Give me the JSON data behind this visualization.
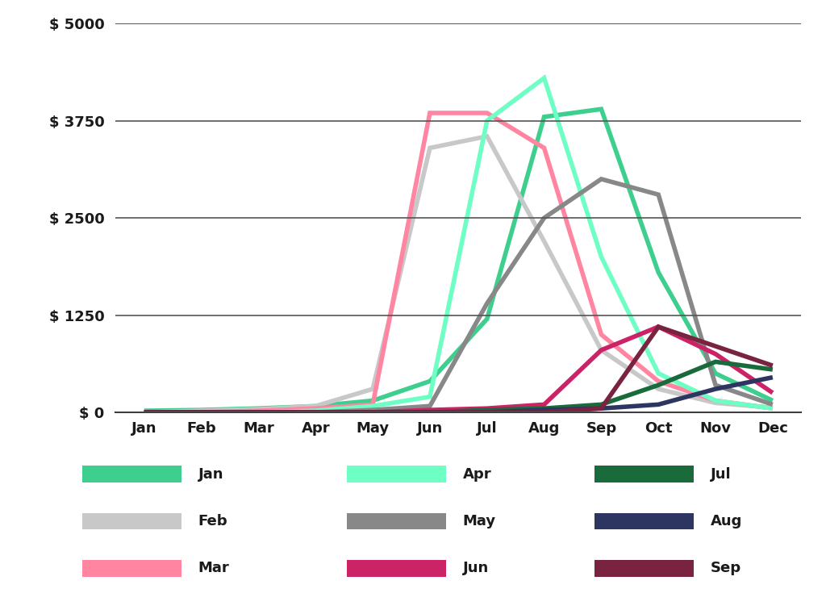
{
  "months": [
    "Jan",
    "Feb",
    "Mar",
    "Apr",
    "May",
    "Jun",
    "Jul",
    "Aug",
    "Sep",
    "Oct",
    "Nov",
    "Dec"
  ],
  "month_indices": [
    1,
    2,
    3,
    4,
    5,
    6,
    7,
    8,
    9,
    10,
    11,
    12
  ],
  "cohorts": {
    "Jan": {
      "color": "#3ecf8e",
      "values": [
        20,
        30,
        50,
        80,
        150,
        400,
        1200,
        3800,
        3900,
        1800,
        500,
        150
      ]
    },
    "Feb": {
      "color": "#c8c8c8",
      "values": [
        0,
        20,
        40,
        80,
        300,
        3400,
        3550,
        2200,
        800,
        300,
        120,
        60
      ]
    },
    "Mar": {
      "color": "#ff85a1",
      "values": [
        0,
        0,
        20,
        50,
        100,
        3850,
        3850,
        3400,
        1000,
        400,
        150,
        50
      ]
    },
    "Apr": {
      "color": "#6effc4",
      "values": [
        0,
        0,
        0,
        20,
        80,
        200,
        3750,
        4300,
        2000,
        500,
        150,
        50
      ]
    },
    "May": {
      "color": "#888888",
      "values": [
        0,
        0,
        0,
        0,
        30,
        80,
        1400,
        2500,
        3000,
        2800,
        350,
        100
      ]
    },
    "Jun": {
      "color": "#cc2266",
      "values": [
        0,
        0,
        0,
        0,
        0,
        30,
        50,
        100,
        800,
        1100,
        750,
        250
      ]
    },
    "Jul": {
      "color": "#1a6b3c",
      "values": [
        0,
        0,
        0,
        0,
        0,
        0,
        30,
        50,
        100,
        350,
        650,
        550
      ]
    },
    "Aug": {
      "color": "#2d3561",
      "values": [
        0,
        0,
        0,
        0,
        0,
        0,
        0,
        30,
        50,
        100,
        300,
        450
      ]
    },
    "Sep": {
      "color": "#7a2340",
      "values": [
        0,
        0,
        0,
        0,
        0,
        0,
        0,
        0,
        50,
        1100,
        850,
        600
      ]
    }
  },
  "ylim": [
    0,
    5000
  ],
  "yticks": [
    0,
    1250,
    2500,
    3750,
    5000
  ],
  "ytick_labels": [
    "$ 0",
    "$ 1250",
    "$ 2500",
    "$ 3750",
    "$ 5000"
  ],
  "line_width": 4,
  "background_color": "#ffffff",
  "grid_color": "#555555",
  "legend_rows": [
    [
      "Jan",
      "Apr",
      "Jul"
    ],
    [
      "Feb",
      "May",
      "Aug"
    ],
    [
      "Mar",
      "Jun",
      "Sep"
    ]
  ]
}
